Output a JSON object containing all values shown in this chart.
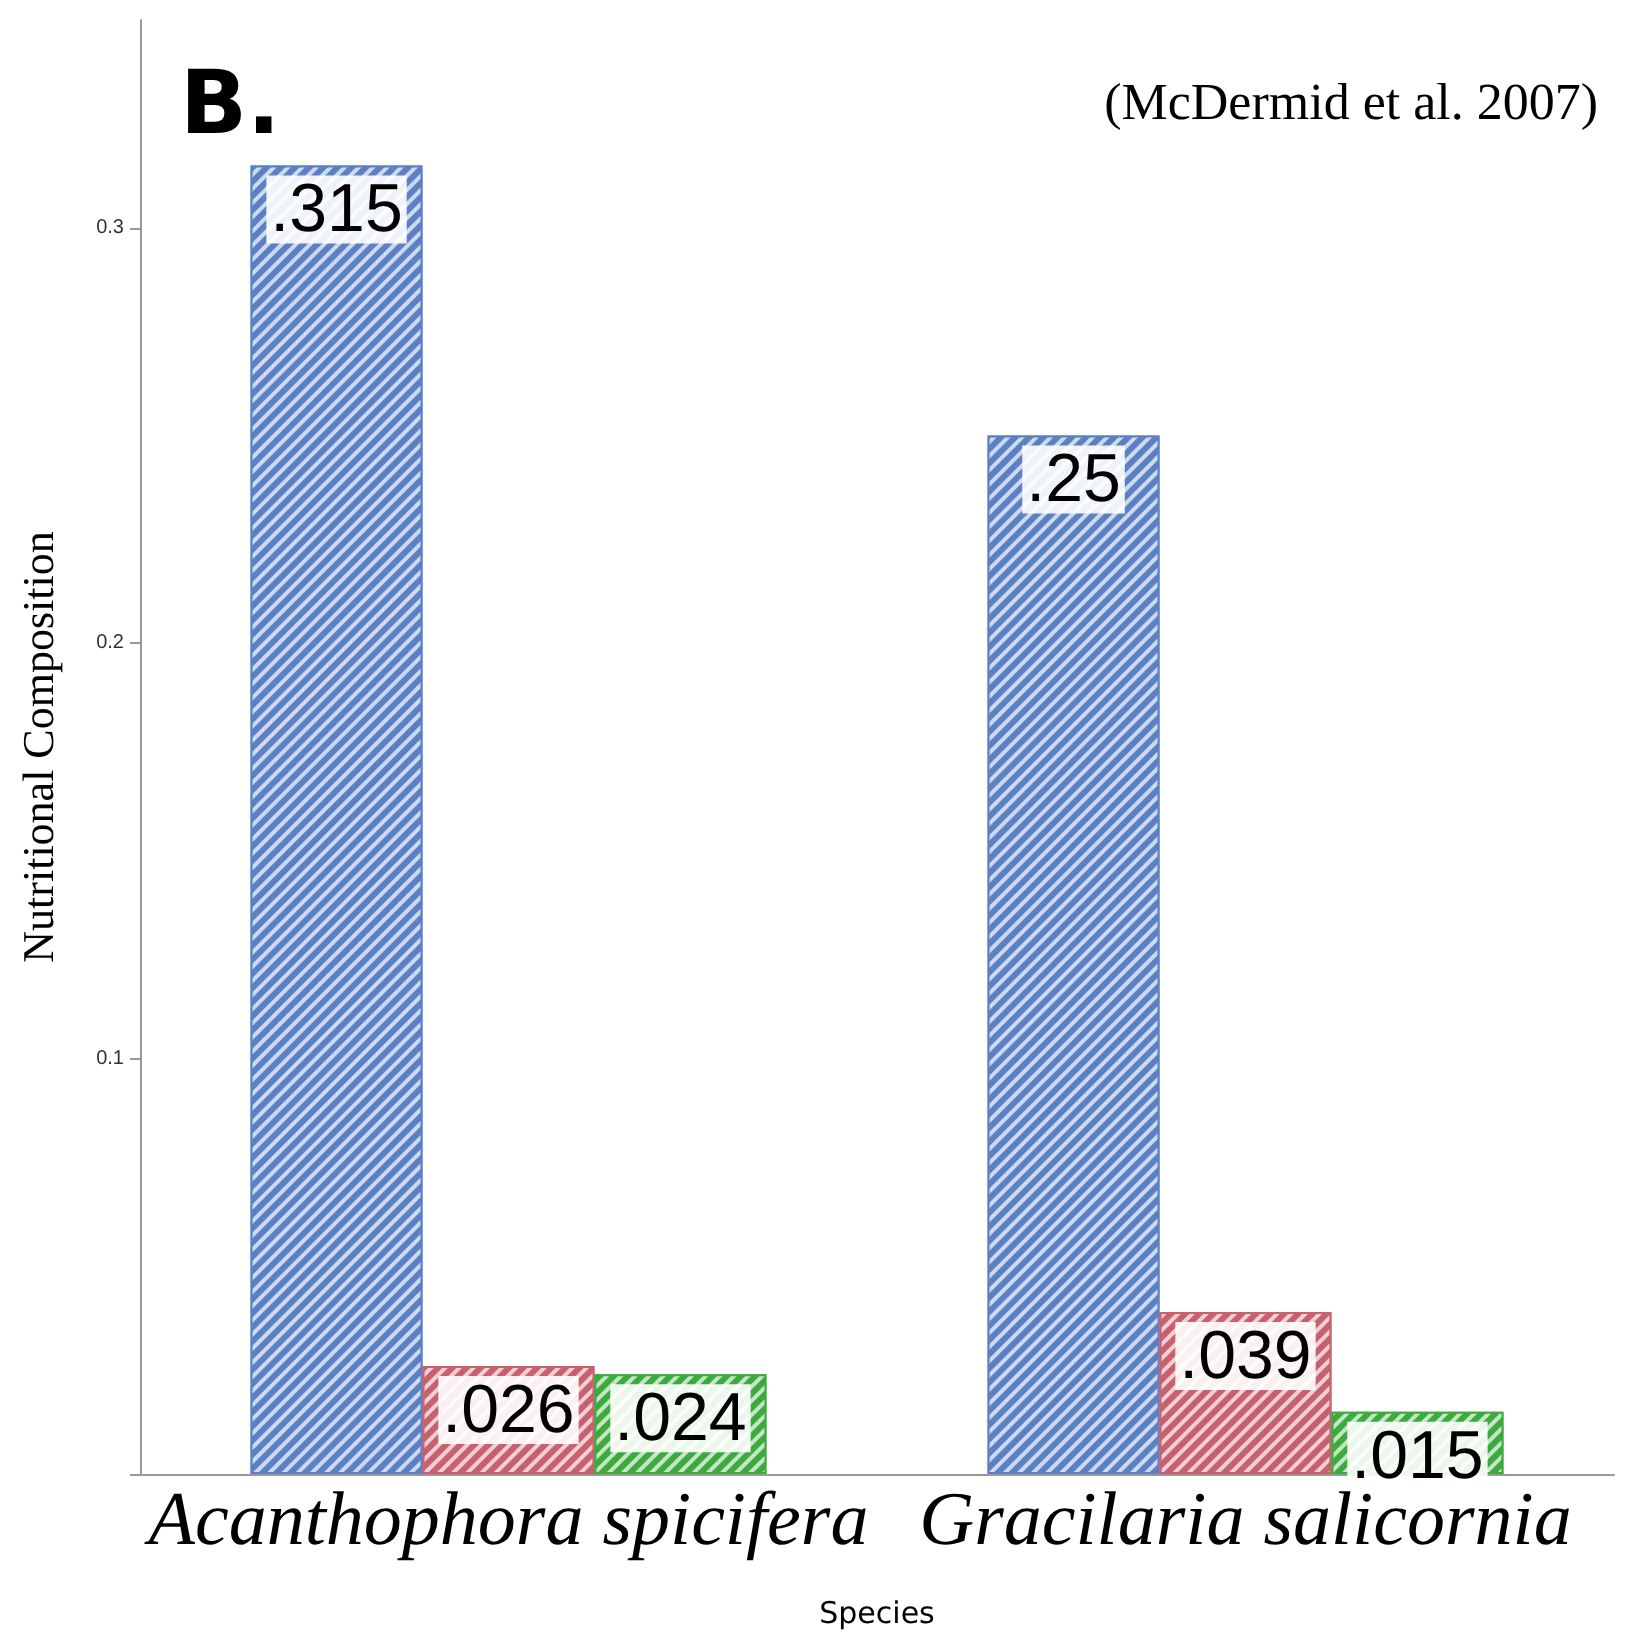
{
  "chart_data": {
    "type": "bar",
    "xlabel": "Species",
    "ylabel": "Nutritional Composition",
    "annotations": [
      "B.",
      "(McDermid et al. 2007)"
    ],
    "categories": [
      "Acanthophora spicifera",
      "Gracilaria salicornia"
    ],
    "series": [
      {
        "color": "#5b80c4",
        "values": [
          0.315,
          0.25
        ],
        "value_labels": [
          ".315",
          ".25"
        ]
      },
      {
        "color": "#c8606e",
        "values": [
          0.026,
          0.039
        ],
        "value_labels": [
          ".026",
          ".039"
        ]
      },
      {
        "color": "#3daa3d",
        "values": [
          0.024,
          0.015
        ],
        "value_labels": [
          ".024",
          ".015"
        ]
      }
    ],
    "ylim": [
      0,
      0.35
    ],
    "yticks": [
      {
        "value": 0,
        "label": null
      },
      0.1,
      0.2,
      0.3
    ],
    "grid": false
  }
}
